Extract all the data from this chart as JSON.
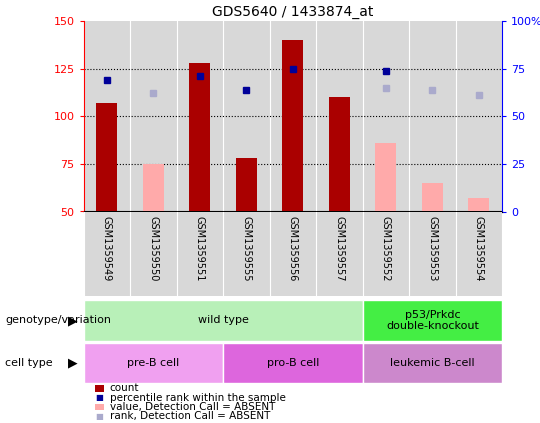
{
  "title": "GDS5640 / 1433874_at",
  "samples": [
    "GSM1359549",
    "GSM1359550",
    "GSM1359551",
    "GSM1359555",
    "GSM1359556",
    "GSM1359557",
    "GSM1359552",
    "GSM1359553",
    "GSM1359554"
  ],
  "count_values": [
    107,
    null,
    128,
    78,
    140,
    110,
    null,
    null,
    null
  ],
  "count_absent": [
    null,
    75,
    null,
    null,
    null,
    null,
    86,
    65,
    57
  ],
  "rank_present": [
    119,
    null,
    121,
    114,
    125,
    null,
    124,
    null,
    null
  ],
  "rank_absent": [
    null,
    112,
    null,
    null,
    null,
    null,
    115,
    114,
    111
  ],
  "ylim": [
    50,
    150
  ],
  "yticks": [
    50,
    75,
    100,
    125,
    150
  ],
  "right_ylim_labels": [
    "0",
    "25",
    "50",
    "75",
    "100%"
  ],
  "dotted_lines": [
    75,
    100,
    125
  ],
  "genotype_groups": [
    {
      "label": "wild type",
      "span": [
        0,
        5
      ],
      "color": "#b8f0b8"
    },
    {
      "label": "p53/Prkdc\ndouble-knockout",
      "span": [
        6,
        8
      ],
      "color": "#44ee44"
    }
  ],
  "cell_type_groups": [
    {
      "label": "pre-B cell",
      "span": [
        0,
        2
      ],
      "color": "#f0a0f0"
    },
    {
      "label": "pro-B cell",
      "span": [
        3,
        5
      ],
      "color": "#dd66dd"
    },
    {
      "label": "leukemic B-cell",
      "span": [
        6,
        8
      ],
      "color": "#cc88cc"
    }
  ],
  "bar_color_present": "#aa0000",
  "bar_color_absent": "#ffaaaa",
  "dot_color_present": "#000099",
  "dot_color_absent": "#aaaacc",
  "plot_bg_color": "#d8d8d8",
  "legend_items": [
    {
      "label": "count",
      "color": "#aa0000",
      "type": "bar"
    },
    {
      "label": "percentile rank within the sample",
      "color": "#000099",
      "type": "dot"
    },
    {
      "label": "value, Detection Call = ABSENT",
      "color": "#ffaaaa",
      "type": "bar"
    },
    {
      "label": "rank, Detection Call = ABSENT",
      "color": "#aaaacc",
      "type": "dot"
    }
  ]
}
